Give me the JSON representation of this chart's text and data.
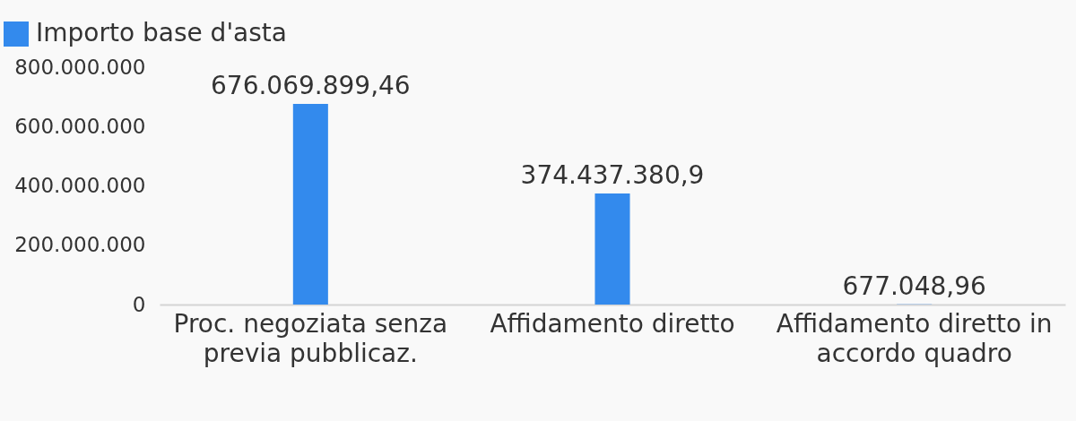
{
  "chart_data": {
    "type": "bar",
    "categories": [
      "Proc. negoziata senza previa pubblicaz.",
      "Affidamento diretto",
      "Affidamento diretto in accordo quadro"
    ],
    "series": [
      {
        "name": "Importo base d'asta",
        "color": "#338aed",
        "values": [
          676069899.46,
          374437380.9,
          677048.96
        ],
        "value_labels": [
          "676.069.899,46",
          "374.437.380,9",
          "677.048,96"
        ]
      }
    ],
    "ylim": [
      0,
      800000000
    ],
    "yticks": [
      0,
      {
        "value": 200000000,
        "label": "200.000.000"
      },
      {
        "value": 400000000,
        "label": "400.000.000"
      },
      {
        "value": 600000000,
        "label": "600.000.000"
      },
      {
        "value": 800000000,
        "label": "800.000.000"
      }
    ],
    "legend": "top left"
  }
}
